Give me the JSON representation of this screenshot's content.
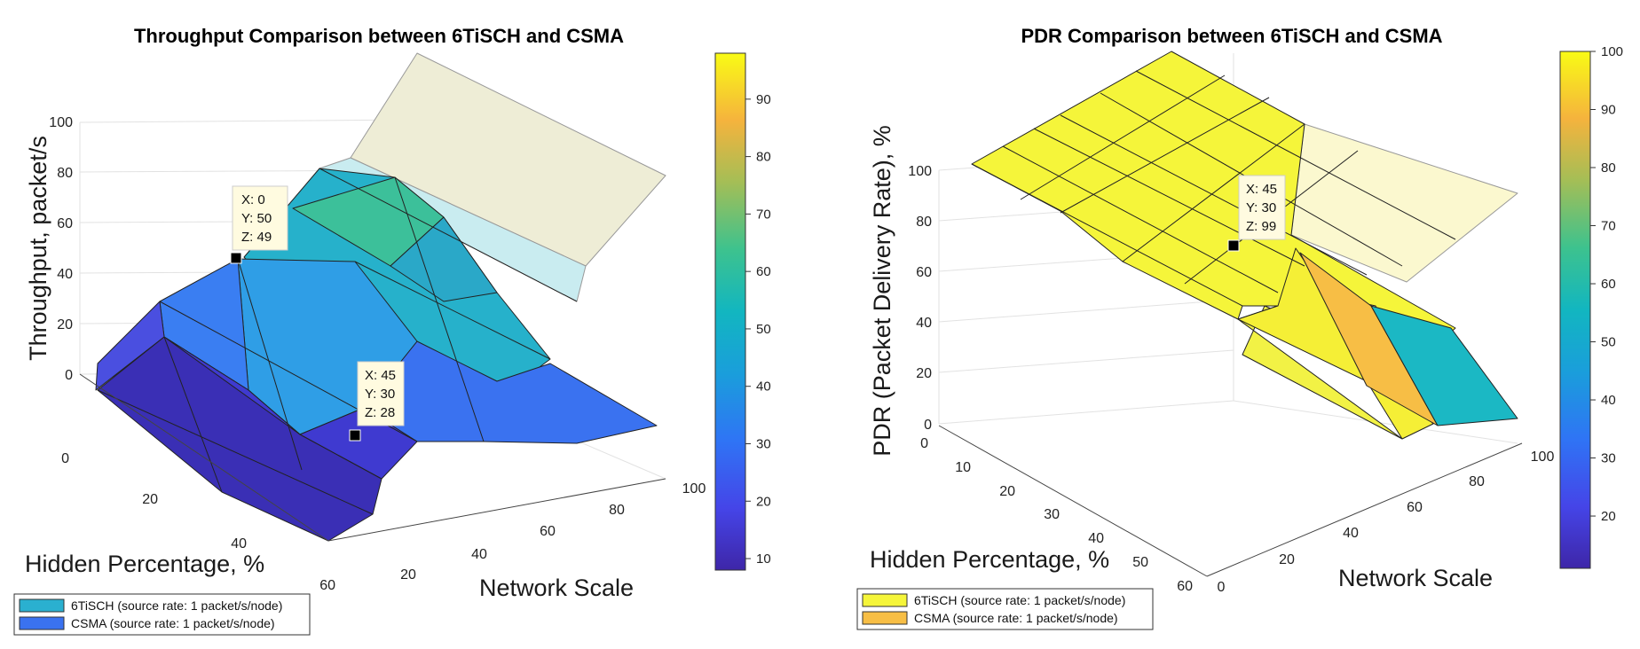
{
  "chart_data": [
    {
      "type": "surface3d",
      "title": "Throughput Comparison between 6TiSCH and CSMA",
      "xlabel": "Network Scale",
      "ylabel": "Hidden Percentage, %",
      "zlabel": "Throughput, packet/s",
      "x_ticks": [
        "20",
        "40",
        "60",
        "80",
        "100"
      ],
      "y_ticks": [
        "0",
        "20",
        "40",
        "60"
      ],
      "z_ticks": [
        "0",
        "20",
        "40",
        "60",
        "80",
        "100"
      ],
      "zlim": [
        0,
        100
      ],
      "colorbar": {
        "ticks": [
          "10",
          "20",
          "30",
          "40",
          "50",
          "60",
          "70",
          "80",
          "90"
        ],
        "range": [
          8,
          98
        ]
      },
      "series": [
        {
          "name": "6TiSCH (source rate: 1 packet/s/node)",
          "color": "#2ab0d0"
        },
        {
          "name": "CSMA (source rate: 1 packet/s/node)",
          "color": "#3a72f0"
        }
      ],
      "datatips": [
        {
          "x": "X: 0",
          "y": "Y: 50",
          "z": "Z: 49"
        },
        {
          "x": "X: 45",
          "y": "Y: 30",
          "z": "Z: 28"
        }
      ]
    },
    {
      "type": "surface3d",
      "title": "PDR Comparison between 6TiSCH and CSMA",
      "xlabel": "Network Scale",
      "ylabel": "Hidden Percentage, %",
      "zlabel": "PDR (Packet Delivery Rate), %",
      "x_ticks": [
        "0",
        "20",
        "40",
        "60",
        "80",
        "100"
      ],
      "y_ticks": [
        "0",
        "10",
        "20",
        "30",
        "40",
        "50",
        "60"
      ],
      "z_ticks": [
        "0",
        "20",
        "40",
        "60",
        "80",
        "100"
      ],
      "zlim": [
        0,
        100
      ],
      "colorbar": {
        "ticks": [
          "20",
          "30",
          "40",
          "50",
          "60",
          "70",
          "80",
          "90",
          "100"
        ],
        "range": [
          11,
          100
        ]
      },
      "series": [
        {
          "name": "6TiSCH (source rate: 1 packet/s/node)",
          "color": "#f5f53a"
        },
        {
          "name": "CSMA (source rate: 1 packet/s/node)",
          "color": "#f7be45"
        }
      ],
      "datatips": [
        {
          "x": "X: 45",
          "y": "Y: 30",
          "z": "Z: 99"
        }
      ]
    }
  ]
}
